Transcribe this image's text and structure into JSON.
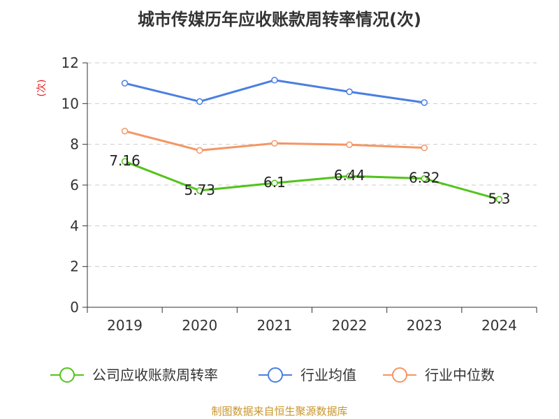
{
  "title": "城市传媒历年应收账款周转率情况(次)",
  "source": "制图数据来自恒生聚源数据库",
  "chart_data": {
    "type": "line",
    "title": "城市传媒历年应收账款周转率情况(次)",
    "ylabel": "(次)",
    "xlabel": "",
    "ylim": [
      0,
      12
    ],
    "yticks": [
      0,
      2,
      4,
      6,
      8,
      10,
      12
    ],
    "grid": true,
    "legend_position": "bottom",
    "categories": [
      "2019",
      "2020",
      "2021",
      "2022",
      "2023",
      "2024"
    ],
    "series": [
      {
        "name": "公司应收账款周转率",
        "color": "#52c41a",
        "values": [
          7.16,
          5.73,
          6.1,
          6.44,
          6.32,
          5.3
        ],
        "labels": [
          "7.16",
          "5.73",
          "6.1",
          "6.44",
          "6.32",
          "5.3"
        ]
      },
      {
        "name": "行业均值",
        "color": "#4a7fe0",
        "values": [
          11.0,
          10.1,
          11.15,
          10.58,
          10.05,
          null
        ]
      },
      {
        "name": "行业中位数",
        "color": "#f59563",
        "values": [
          8.65,
          7.7,
          8.05,
          7.98,
          7.83,
          null
        ]
      }
    ]
  }
}
